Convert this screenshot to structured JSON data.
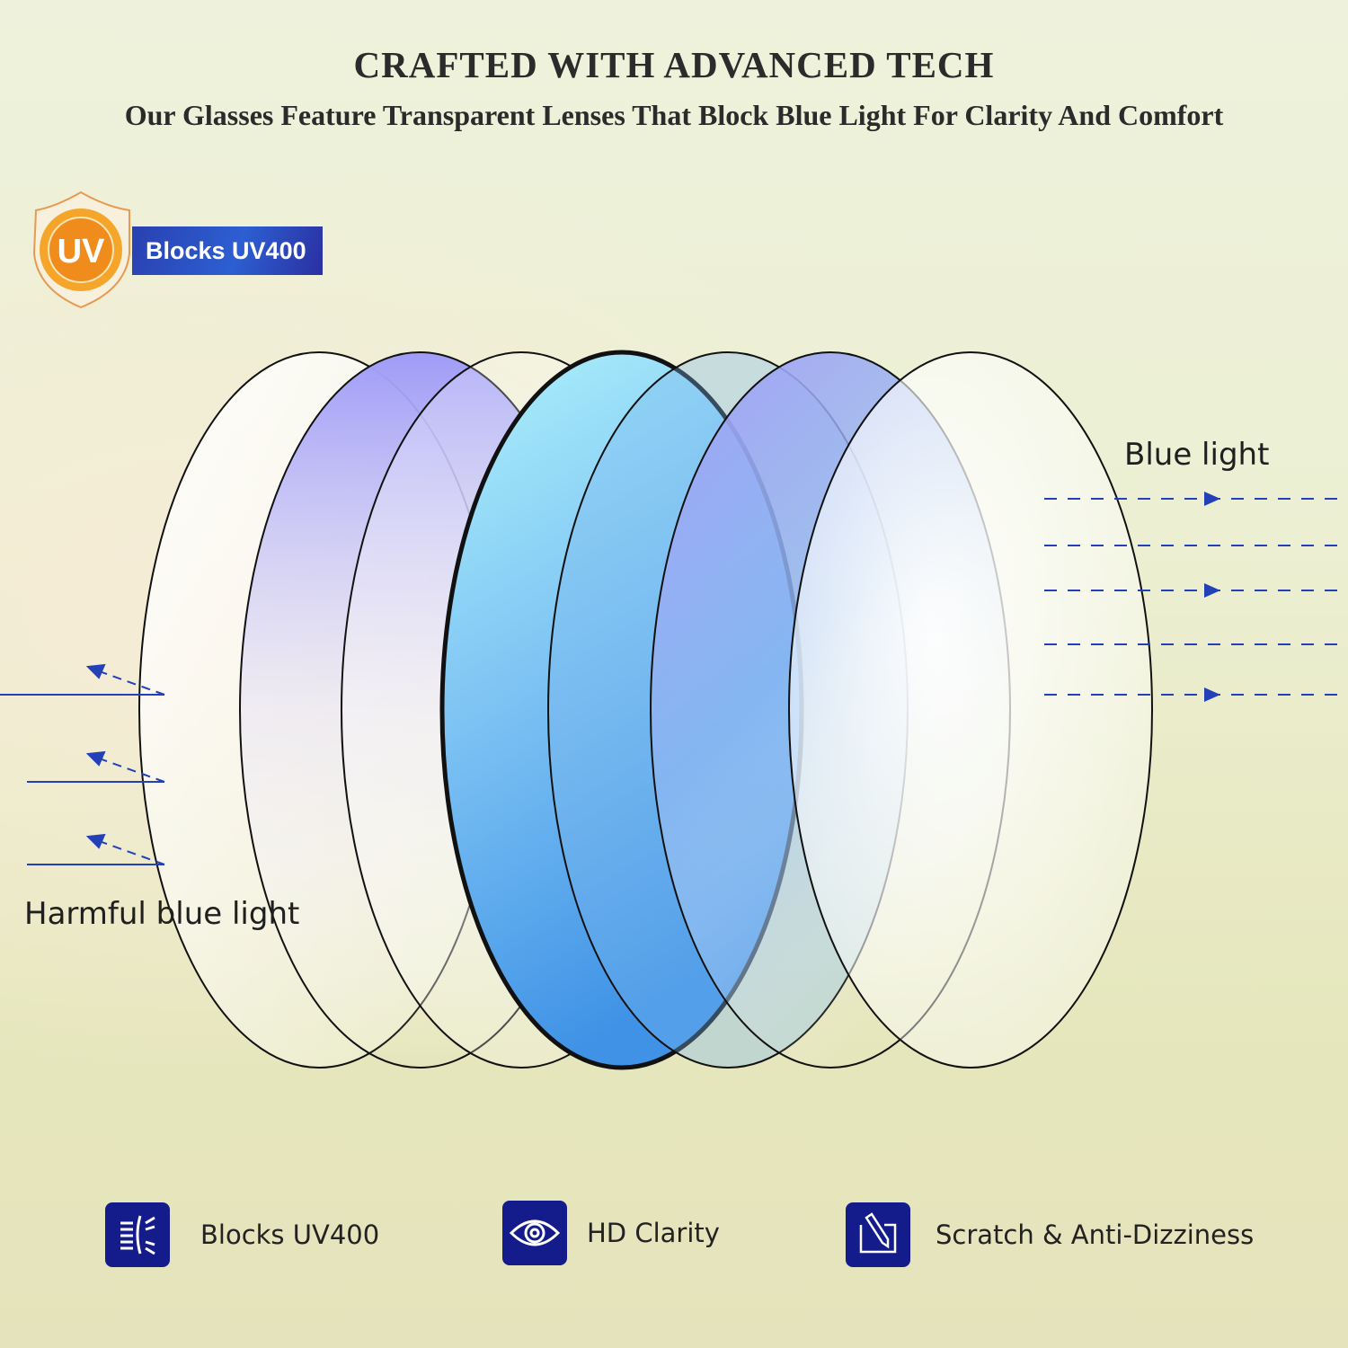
{
  "header": {
    "title": "CRAFTED WITH ADVANCED TECH",
    "subtitle": "Our Glasses Feature Transparent Lenses That Block Blue Light For Clarity And Comfort"
  },
  "badge": {
    "icon": "uv-shield-icon",
    "icon_text": "UV",
    "label": "Blocks UV400"
  },
  "diagram": {
    "blue_light_label": "Blue light",
    "harmful_label": "Harmful blue light"
  },
  "features": [
    {
      "icon": "light-block-icon",
      "label": "Blocks UV400"
    },
    {
      "icon": "eye-icon",
      "label": "HD Clarity"
    },
    {
      "icon": "pen-icon",
      "label": "Scratch & Anti-Dizziness"
    }
  ],
  "colors": {
    "accent": "#141c8c",
    "arrow": "#2440b8",
    "uv_orange": "#f08c1c"
  }
}
